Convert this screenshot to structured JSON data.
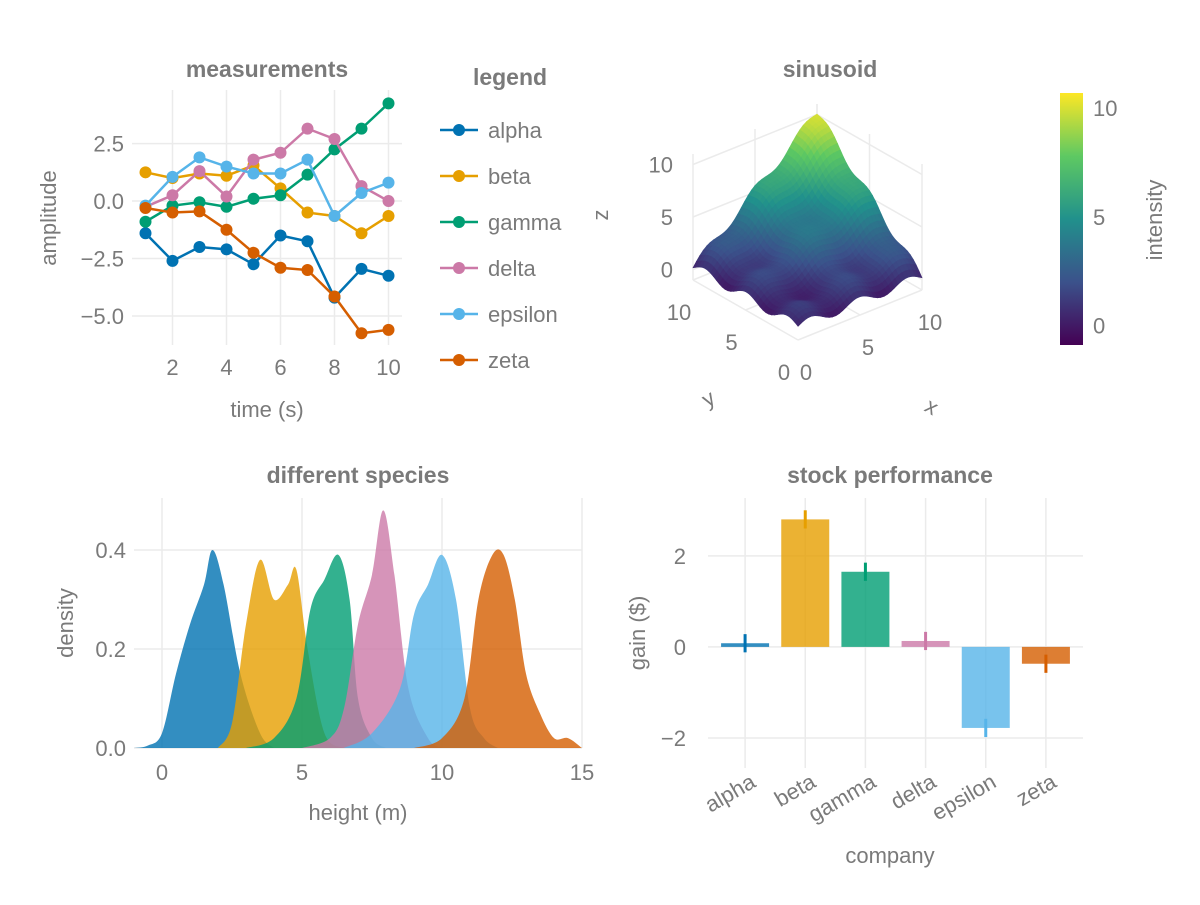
{
  "chart_data": [
    {
      "type": "line",
      "title": "measurements",
      "xlabel": "time (s)",
      "ylabel": "amplitude",
      "xlim": [
        0.5,
        10.5
      ],
      "ylim": [
        -6.26,
        4.83
      ],
      "xticks": [
        2,
        4,
        6,
        8,
        10
      ],
      "yticks": [
        2.5,
        0.0,
        -2.5,
        -5.0
      ],
      "ytick_labels": [
        "2.5",
        "0.0",
        "−2.5",
        "−5.0"
      ],
      "grid": true,
      "x": [
        1,
        2,
        3,
        4,
        5,
        6,
        7,
        8,
        9,
        10
      ],
      "legend_title": "legend",
      "legend_placement": "right",
      "series": [
        {
          "name": "alpha",
          "color": "#0072b2",
          "values": [
            -1.4,
            -2.6,
            -2.0,
            -2.1,
            -2.75,
            -1.5,
            -1.75,
            -4.2,
            -2.95,
            -3.25
          ]
        },
        {
          "name": "beta",
          "color": "#e69f00",
          "values": [
            1.25,
            1.0,
            1.2,
            1.1,
            1.55,
            0.55,
            -0.5,
            -0.65,
            -1.4,
            -0.65
          ]
        },
        {
          "name": "gamma",
          "color": "#009e73",
          "values": [
            -0.9,
            -0.2,
            -0.05,
            -0.25,
            0.1,
            0.25,
            1.15,
            2.25,
            3.15,
            4.25
          ]
        },
        {
          "name": "delta",
          "color": "#cc79a7",
          "values": [
            -0.25,
            0.25,
            1.3,
            0.2,
            1.8,
            2.1,
            3.15,
            2.7,
            0.65,
            0.0
          ]
        },
        {
          "name": "epsilon",
          "color": "#56b4e9",
          "values": [
            -0.2,
            1.05,
            1.9,
            1.5,
            1.2,
            1.2,
            1.8,
            -0.65,
            0.35,
            0.8
          ]
        },
        {
          "name": "zeta",
          "color": "#d55e00",
          "values": [
            -0.3,
            -0.5,
            -0.45,
            -1.25,
            -2.25,
            -2.9,
            -3.0,
            -4.15,
            -5.75,
            -5.6
          ]
        }
      ]
    },
    {
      "type": "surface",
      "title": "sinusoid",
      "xlabel": "x",
      "ylabel": "y",
      "zlabel": "z",
      "xlim": [
        0,
        10
      ],
      "ylim": [
        0,
        10
      ],
      "zlim": [
        -1,
        11
      ],
      "xticks": [
        0,
        5,
        10
      ],
      "yticks": [
        0,
        5,
        10
      ],
      "zticks": [
        0,
        5,
        10
      ],
      "colormap": "viridis",
      "colorbar": {
        "label": "intensity",
        "range": [
          -0.9,
          10.7
        ],
        "ticks": [
          0,
          5,
          10
        ]
      }
    },
    {
      "type": "area",
      "title": "different species",
      "xlabel": "height (m)",
      "ylabel": "density",
      "xlim": [
        -1,
        15
      ],
      "ylim": [
        0,
        0.505
      ],
      "xticks": [
        0,
        5,
        10,
        15
      ],
      "yticks": [
        0.0,
        0.2,
        0.4
      ],
      "ytick_labels": [
        "0.0",
        "0.2",
        "0.4"
      ],
      "grid": true,
      "series": [
        {
          "color": "#0072b2",
          "points": [
            [
              -1,
              0
            ],
            [
              -0.5,
              0.005
            ],
            [
              0,
              0.03
            ],
            [
              0.5,
              0.15
            ],
            [
              1,
              0.25
            ],
            [
              1.5,
              0.33
            ],
            [
              1.8,
              0.4
            ],
            [
              2.2,
              0.33
            ],
            [
              2.8,
              0.15
            ],
            [
              3.5,
              0.03
            ],
            [
              4,
              0
            ]
          ]
        },
        {
          "color": "#e69f00",
          "points": [
            [
              2,
              0
            ],
            [
              2.5,
              0.05
            ],
            [
              3,
              0.25
            ],
            [
              3.5,
              0.38
            ],
            [
              4,
              0.3
            ],
            [
              4.5,
              0.33
            ],
            [
              4.8,
              0.36
            ],
            [
              5.2,
              0.2
            ],
            [
              5.8,
              0.03
            ],
            [
              6.5,
              0
            ]
          ]
        },
        {
          "color": "#009e73",
          "points": [
            [
              3,
              0
            ],
            [
              4,
              0.02
            ],
            [
              4.8,
              0.1
            ],
            [
              5.3,
              0.28
            ],
            [
              5.8,
              0.34
            ],
            [
              6.3,
              0.39
            ],
            [
              6.7,
              0.3
            ],
            [
              7,
              0.1
            ],
            [
              7.5,
              0.02
            ],
            [
              8,
              0
            ]
          ]
        },
        {
          "color": "#cc79a7",
          "points": [
            [
              5,
              0
            ],
            [
              6,
              0.02
            ],
            [
              6.5,
              0.08
            ],
            [
              7,
              0.25
            ],
            [
              7.5,
              0.35
            ],
            [
              7.9,
              0.48
            ],
            [
              8.3,
              0.35
            ],
            [
              8.8,
              0.12
            ],
            [
              9.5,
              0.02
            ],
            [
              10,
              0
            ]
          ]
        },
        {
          "color": "#56b4e9",
          "points": [
            [
              6.5,
              0
            ],
            [
              7.5,
              0.03
            ],
            [
              8.5,
              0.12
            ],
            [
              9,
              0.27
            ],
            [
              9.5,
              0.33
            ],
            [
              10,
              0.39
            ],
            [
              10.5,
              0.3
            ],
            [
              11,
              0.08
            ],
            [
              11.5,
              0.02
            ],
            [
              12,
              0
            ]
          ]
        },
        {
          "color": "#d55e00",
          "points": [
            [
              9,
              0
            ],
            [
              10,
              0.02
            ],
            [
              10.8,
              0.1
            ],
            [
              11.3,
              0.3
            ],
            [
              11.8,
              0.39
            ],
            [
              12.2,
              0.39
            ],
            [
              12.6,
              0.3
            ],
            [
              13,
              0.15
            ],
            [
              13.5,
              0.07
            ],
            [
              14,
              0.02
            ],
            [
              14.5,
              0.02
            ],
            [
              15,
              0
            ]
          ]
        }
      ]
    },
    {
      "type": "bar",
      "title": "stock performance",
      "xlabel": "company",
      "ylabel": "gain ($)",
      "ylim": [
        -2.66,
        3.27
      ],
      "yticks": [
        2,
        0,
        -2
      ],
      "ytick_labels": [
        "2",
        "0",
        "−2"
      ],
      "grid": true,
      "categories": [
        "alpha",
        "beta",
        "gamma",
        "delta",
        "epsilon",
        "zeta"
      ],
      "values": [
        0.08,
        2.8,
        1.65,
        0.13,
        -1.78,
        -0.37
      ],
      "errors": [
        0.2,
        0.2,
        0.2,
        0.2,
        0.2,
        0.2
      ],
      "colors": [
        "#0072b2",
        "#e69f00",
        "#009e73",
        "#cc79a7",
        "#56b4e9",
        "#d55e00"
      ]
    }
  ]
}
